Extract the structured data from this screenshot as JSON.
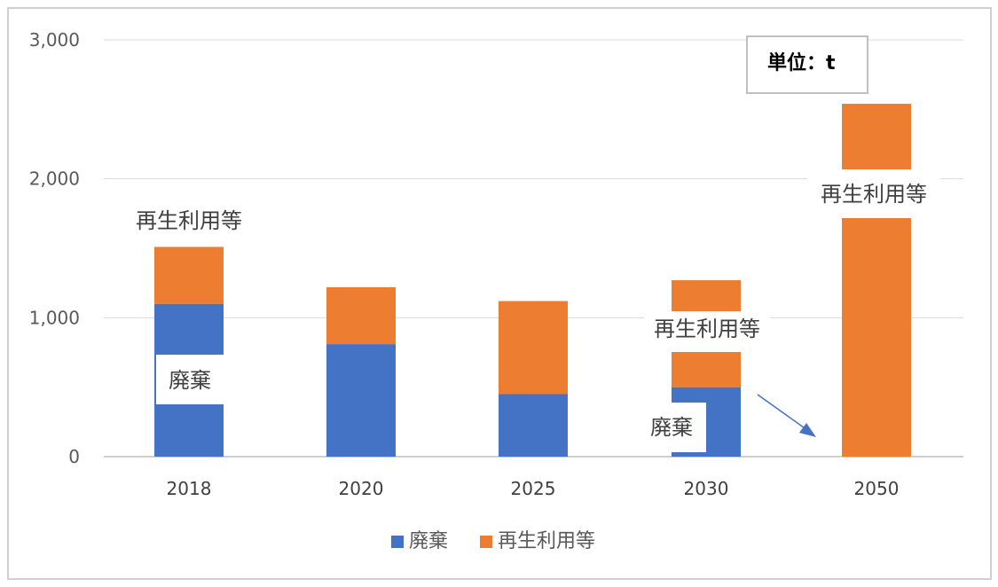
{
  "chart_data": {
    "type": "bar",
    "stacked": true,
    "categories": [
      "2018",
      "2020",
      "2025",
      "2030",
      "2050"
    ],
    "series": [
      {
        "name": "廃棄",
        "color": "#4472C4",
        "values": [
          1100,
          810,
          450,
          500,
          0
        ]
      },
      {
        "name": "再生利用等",
        "color": "#ED7D31",
        "values": [
          410,
          410,
          670,
          770,
          2540
        ]
      }
    ],
    "ylim": [
      0,
      3000
    ],
    "yticks": [
      0,
      1000,
      2000,
      3000
    ],
    "ytick_labels": [
      "0",
      "1,000",
      "2,000",
      "3,000"
    ],
    "grid": true,
    "legend_position": "bottom",
    "unit_label": "単位：t",
    "annotations": {
      "label_2018_recycle": "再生利用等",
      "label_2018_waste": "廃棄",
      "label_2030_recycle": "再生利用等",
      "label_2030_waste": "廃棄",
      "label_2050_recycle": "再生利用等"
    }
  }
}
